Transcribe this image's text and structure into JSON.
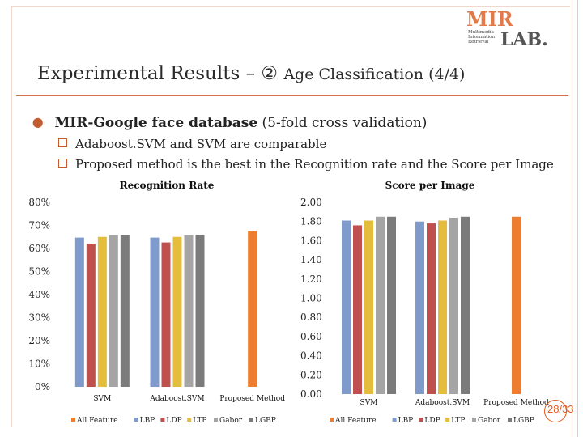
{
  "slide": {
    "title_main": "Experimental Results – ② ",
    "title_sub": "Age Classification (4/4)",
    "bullet_bold": "MIR-Google face database",
    "bullet_rest": " (5-fold cross validation)",
    "sub_bullets": [
      "Adaboost.SVM and SVM are comparable",
      "Proposed method is the best in the Recognition rate and the Score per Image"
    ],
    "page_number": "28/33",
    "logo_lines": [
      "Multimedia",
      "Information",
      "Retrieval"
    ],
    "logo_text_top": "MIR",
    "logo_text_bottom": "LAB."
  },
  "colors": {
    "All Feature": "#ed7d31",
    "LBP": "#7f9bcb",
    "LDP": "#c0504d",
    "LTP": "#e4bd3c",
    "Gabor": "#a5a5a5",
    "LGBP": "#7b7b7b",
    "accent": "#c65b2f"
  },
  "chart_data": [
    {
      "type": "bar",
      "title": "Recognition Rate",
      "categories": [
        "SVM",
        "Adaboost.SVM",
        "Proposed Method"
      ],
      "ylim": [
        0,
        80
      ],
      "yticks": [
        "0%",
        "10%",
        "20%",
        "30%",
        "40%",
        "50%",
        "60%",
        "70%",
        "80%"
      ],
      "series": [
        {
          "name": "All Feature",
          "values": [
            null,
            null,
            67.5
          ]
        },
        {
          "name": "LBP",
          "values": [
            64.7,
            64.7,
            null
          ]
        },
        {
          "name": "LDP",
          "values": [
            62.1,
            62.6,
            null
          ]
        },
        {
          "name": "LTP",
          "values": [
            65.0,
            65.0,
            null
          ]
        },
        {
          "name": "Gabor",
          "values": [
            65.7,
            65.7,
            null
          ]
        },
        {
          "name": "LGBP",
          "values": [
            65.9,
            65.9,
            null
          ]
        }
      ],
      "legend": "bottom",
      "grid": false
    },
    {
      "type": "bar",
      "title": "Score per Image",
      "categories": [
        "SVM",
        "Adaboost.SVM",
        "Proposed Method"
      ],
      "ylim": [
        0,
        2.0
      ],
      "yticks": [
        "0.00",
        "0.20",
        "0.40",
        "0.60",
        "0.80",
        "1.00",
        "1.20",
        "1.40",
        "1.60",
        "1.80",
        "2.00"
      ],
      "series": [
        {
          "name": "All Feature",
          "values": [
            null,
            null,
            1.85
          ]
        },
        {
          "name": "LBP",
          "values": [
            1.81,
            1.8,
            null
          ]
        },
        {
          "name": "LDP",
          "values": [
            1.76,
            1.78,
            null
          ]
        },
        {
          "name": "LTP",
          "values": [
            1.81,
            1.81,
            null
          ]
        },
        {
          "name": "Gabor",
          "values": [
            1.85,
            1.84,
            null
          ]
        },
        {
          "name": "LGBP",
          "values": [
            1.85,
            1.85,
            null
          ]
        }
      ],
      "legend": "bottom",
      "grid": false
    }
  ]
}
